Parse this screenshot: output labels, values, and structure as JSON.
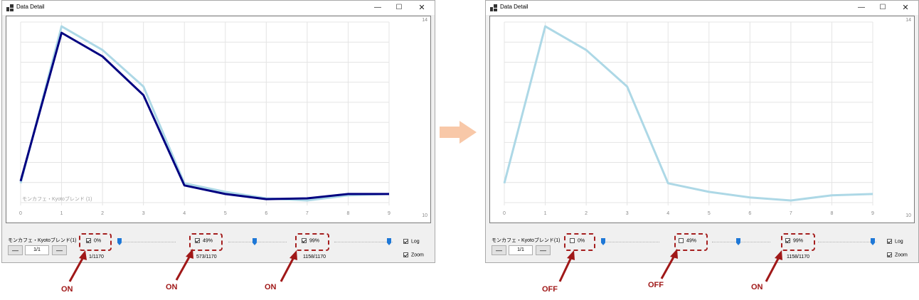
{
  "window": {
    "title": "Data Detail",
    "min": "—",
    "max": "☐",
    "close": "✕"
  },
  "chart_data": [
    {
      "type": "line",
      "x": [
        0,
        1,
        2,
        3,
        4,
        5,
        6,
        7,
        8,
        9
      ],
      "xlim": [
        0,
        9
      ],
      "ylabel_top": "14",
      "ylabel_bottom": "10",
      "overlay_label": "モンカフェ・Kyotoブレンド (1)",
      "grid": true,
      "series": [
        {
          "values": [
            10.25,
            13.9,
            13.35,
            12.5,
            10.25,
            10.05,
            9.9,
            9.85,
            9.97,
            10.0
          ],
          "color": "#add8e6"
        },
        {
          "values": [
            10.3,
            13.75,
            13.2,
            12.3,
            10.2,
            10.0,
            9.88,
            9.9,
            10.0,
            10.0
          ],
          "color": "#000080"
        }
      ]
    },
    {
      "type": "line",
      "x": [
        0,
        1,
        2,
        3,
        4,
        5,
        6,
        7,
        8,
        9
      ],
      "xlim": [
        0,
        9
      ],
      "ylabel_top": "14",
      "ylabel_bottom": "10",
      "grid": true,
      "series": [
        {
          "values": [
            10.25,
            13.9,
            13.35,
            12.5,
            10.25,
            10.05,
            9.92,
            9.85,
            9.97,
            10.0
          ],
          "color": "#add8e6"
        }
      ]
    }
  ],
  "left": {
    "series_name": "モンカフェ・Kyotoブレンド(1)",
    "page": "1/1",
    "prev": "—",
    "next": "—",
    "checks": [
      {
        "label": "0%",
        "checked": true,
        "count": "1/1170",
        "slider": 0.0
      },
      {
        "label": "49%",
        "checked": true,
        "count": "573/1170",
        "slider": 0.49
      },
      {
        "label": "99%",
        "checked": true,
        "count": "1158/1170",
        "slider": 0.99
      }
    ],
    "log": "Log",
    "zoom": "Zoom",
    "annotations": [
      "ON",
      "ON",
      "ON"
    ]
  },
  "right": {
    "series_name": "モンカフェ・Kyotoブレンド(1)",
    "page": "1/1",
    "prev": "—",
    "next": "—",
    "checks": [
      {
        "label": "0%",
        "checked": false,
        "count": "",
        "slider": 0.0
      },
      {
        "label": "49%",
        "checked": false,
        "count": "",
        "slider": 0.49
      },
      {
        "label": "99%",
        "checked": true,
        "count": "1158/1170",
        "slider": 0.99
      }
    ],
    "log": "Log",
    "zoom": "Zoom",
    "annotations": [
      "OFF",
      "OFF",
      "ON"
    ]
  },
  "colors": {
    "annotation": "#a01818",
    "transition_arrow": "#f8c8a8",
    "accent": "#1e78d7"
  }
}
